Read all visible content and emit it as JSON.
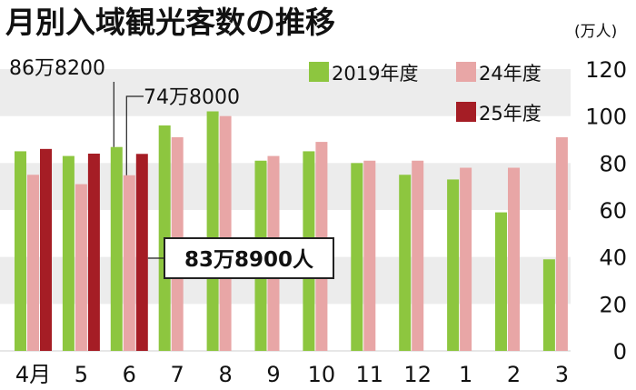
{
  "chart_data": {
    "type": "bar",
    "title": "月別入域観光客数の推移",
    "unit_label": "(万人)",
    "categories": [
      "4月",
      "5",
      "6",
      "7",
      "8",
      "9",
      "10",
      "11",
      "12",
      "1",
      "2",
      "3"
    ],
    "ylim": [
      0,
      120
    ],
    "yticks": [
      0,
      20,
      40,
      60,
      80,
      100,
      120
    ],
    "grid_bands": true,
    "legend_position": "top-right",
    "series": [
      {
        "name": "2019年度",
        "color": "#8dc63f",
        "values": [
          85,
          83,
          86.82,
          96,
          102,
          81,
          85,
          80,
          75,
          73,
          59,
          39
        ]
      },
      {
        "name": "24年度",
        "color": "#e8a6a6",
        "values": [
          75,
          71,
          74.8,
          91,
          100,
          83,
          89,
          81,
          81,
          78,
          78,
          91
        ]
      },
      {
        "name": "25年度",
        "color": "#a51d25",
        "values": [
          86,
          84,
          83.89,
          null,
          null,
          null,
          null,
          null,
          null,
          null,
          null,
          null
        ]
      }
    ],
    "annotations": [
      {
        "text": "86万8200",
        "series": 0,
        "category": 2,
        "style": "plain"
      },
      {
        "text": "74万8000",
        "series": 1,
        "category": 2,
        "style": "plain"
      },
      {
        "text": "83万8900人",
        "series": 2,
        "category": 2,
        "style": "boxed"
      }
    ]
  }
}
